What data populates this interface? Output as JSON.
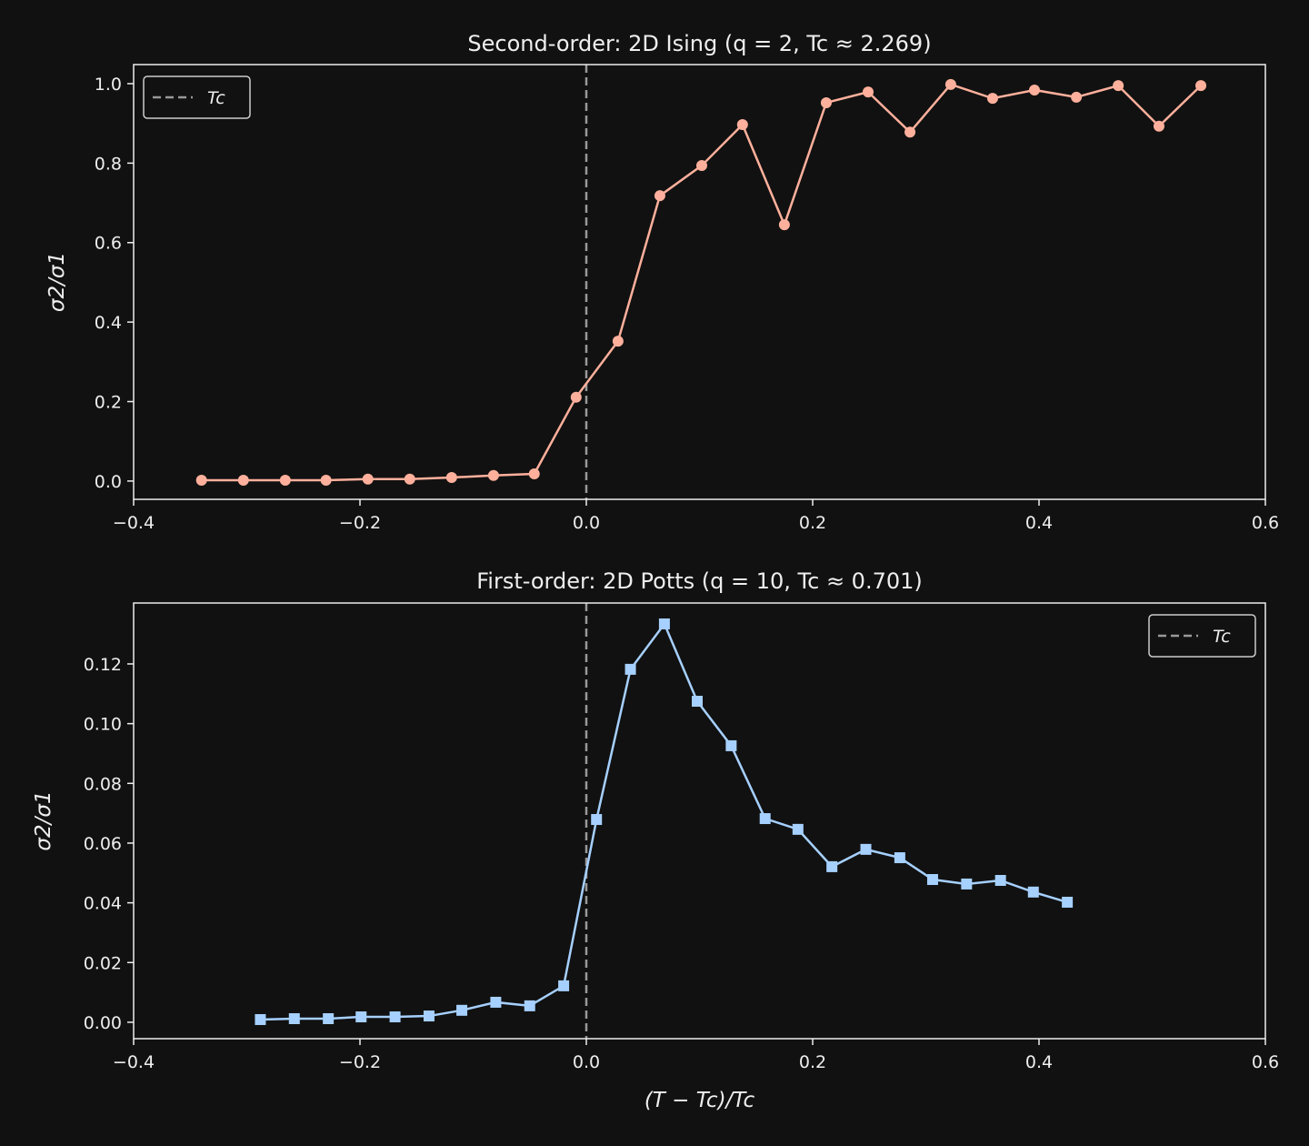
{
  "chart_data": [
    {
      "type": "line",
      "title": "Second-order: 2D Ising (q = 2, Tc ≈ 2.269)",
      "xlabel": "",
      "ylabel": "σ2/σ1",
      "xlim": [
        -0.4,
        0.6
      ],
      "ylim": [
        -0.046,
        1.048
      ],
      "xticks": [
        -0.4,
        -0.2,
        0.0,
        0.2,
        0.4,
        0.6
      ],
      "xtick_labels": [
        "−0.4",
        "−0.2",
        "0.0",
        "0.2",
        "0.4",
        "0.6"
      ],
      "yticks": [
        0.0,
        0.2,
        0.4,
        0.6,
        0.8,
        1.0
      ],
      "ytick_labels": [
        "0.0",
        "0.2",
        "0.4",
        "0.6",
        "0.8",
        "1.0"
      ],
      "grid": false,
      "legend": {
        "placement": "top-left",
        "entries": [
          "Tc"
        ]
      },
      "vline": {
        "x": 0.0,
        "label": "Tc",
        "color": "#999999",
        "style": "dashed"
      },
      "series": [
        {
          "color": "#ffb09c",
          "marker": "circle",
          "x": [
            -0.34,
            -0.303,
            -0.266,
            -0.23,
            -0.193,
            -0.156,
            -0.119,
            -0.082,
            -0.046,
            -0.009,
            0.028,
            0.065,
            0.102,
            0.138,
            0.175,
            0.212,
            0.249,
            0.286,
            0.322,
            0.359,
            0.396,
            0.433,
            0.47,
            0.506,
            0.543
          ],
          "y": [
            0.002,
            0.002,
            0.002,
            0.002,
            0.005,
            0.005,
            0.009,
            0.014,
            0.018,
            0.211,
            0.352,
            0.718,
            0.794,
            0.897,
            0.645,
            0.952,
            0.979,
            0.878,
            0.998,
            0.963,
            0.984,
            0.966,
            0.995,
            0.893,
            0.995
          ]
        }
      ]
    },
    {
      "type": "line",
      "title": "First-order: 2D Potts (q = 10, Tc ≈ 0.701)",
      "xlabel": "(T − Tc)/Tc",
      "ylabel": "σ2/σ1",
      "xlim": [
        -0.4,
        0.6
      ],
      "ylim": [
        -0.0055,
        0.1404
      ],
      "xticks": [
        -0.4,
        -0.2,
        0.0,
        0.2,
        0.4,
        0.6
      ],
      "xtick_labels": [
        "−0.4",
        "−0.2",
        "0.0",
        "0.2",
        "0.4",
        "0.6"
      ],
      "yticks": [
        0.0,
        0.02,
        0.04,
        0.06,
        0.08,
        0.1,
        0.12
      ],
      "ytick_labels": [
        "0.00",
        "0.02",
        "0.04",
        "0.06",
        "0.08",
        "0.10",
        "0.12"
      ],
      "grid": false,
      "legend": {
        "placement": "top-right",
        "entries": [
          "Tc"
        ]
      },
      "vline": {
        "x": 0.0,
        "label": "Tc",
        "color": "#999999",
        "style": "dashed"
      },
      "series": [
        {
          "color": "#a6d0ff",
          "marker": "square",
          "x": [
            -0.288,
            -0.258,
            -0.228,
            -0.199,
            -0.169,
            -0.139,
            -0.11,
            -0.08,
            -0.05,
            -0.02,
            0.009,
            0.039,
            0.069,
            0.098,
            0.128,
            0.158,
            0.187,
            0.217,
            0.247,
            0.277,
            0.306,
            0.336,
            0.366,
            0.395,
            0.425
          ],
          "y": [
            0.0009,
            0.0012,
            0.0012,
            0.0018,
            0.0018,
            0.0021,
            0.004,
            0.0067,
            0.0055,
            0.0122,
            0.0679,
            0.1182,
            0.1334,
            0.1075,
            0.0926,
            0.0682,
            0.0646,
            0.0521,
            0.0579,
            0.0551,
            0.0478,
            0.0463,
            0.0475,
            0.0436,
            0.0402
          ]
        }
      ]
    }
  ]
}
